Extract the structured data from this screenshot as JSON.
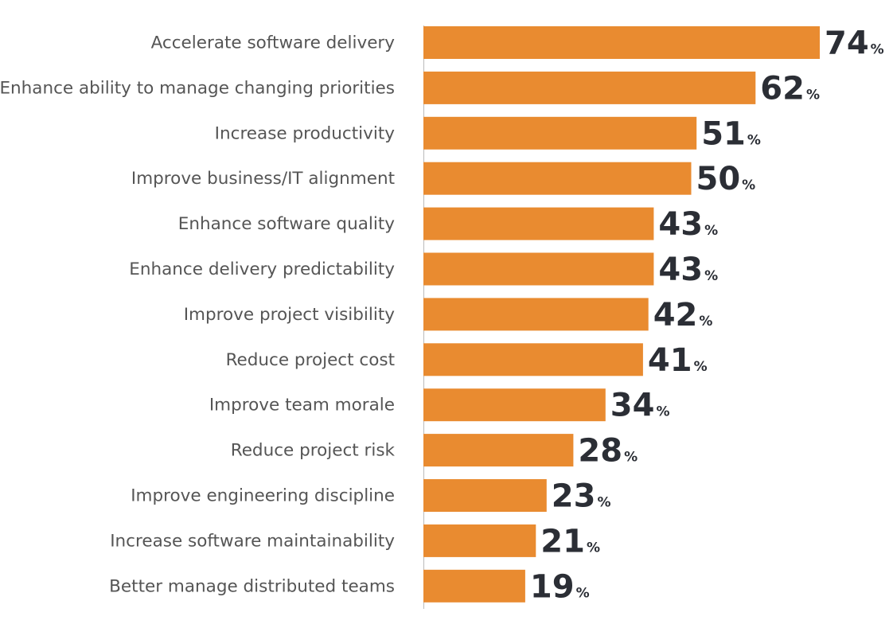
{
  "chart_data": {
    "type": "bar",
    "orientation": "horizontal",
    "title": "",
    "xlabel": "",
    "ylabel": "",
    "grid": false,
    "legend": "none",
    "xlim": [
      0,
      74
    ],
    "value_suffix": "%",
    "bar_color": "#E98B30",
    "text_color": "#2B2E35",
    "label_color": "#555555",
    "categories": [
      "Accelerate software delivery",
      "Enhance ability to manage changing priorities",
      "Increase productivity",
      "Improve business/IT alignment",
      "Enhance software quality",
      "Enhance delivery predictability",
      "Improve project visibility",
      "Reduce project cost",
      "Improve team morale",
      "Reduce project risk",
      "Improve engineering discipline",
      "Increase software maintainability",
      "Better manage distributed teams"
    ],
    "values": [
      74,
      62,
      51,
      50,
      43,
      43,
      42,
      41,
      34,
      28,
      23,
      21,
      19
    ]
  }
}
